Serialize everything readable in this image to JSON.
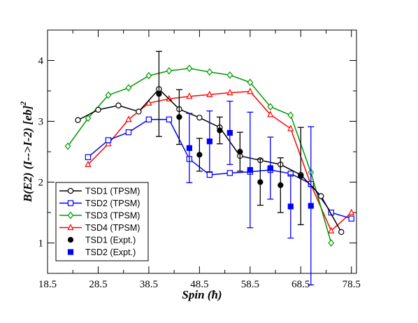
{
  "chart_data": {
    "type": "line",
    "xlabel": "Spin (ħ)",
    "ylabel_main": "B(E2) (I-->I-2) [eb]",
    "ylabel_sup": "2",
    "xlim": [
      18.5,
      79.5
    ],
    "ylim": [
      0.5,
      4.5
    ],
    "x_ticks": [
      18.5,
      28.5,
      38.5,
      48.5,
      58.5,
      68.5,
      78.5
    ],
    "x_tick_labels": [
      "18.5",
      "28.5",
      "38.5",
      "48.5",
      "58.5",
      "68.5",
      "78.5"
    ],
    "y_ticks": [
      1,
      2,
      3,
      4
    ],
    "y_tick_labels": [
      "1",
      "2",
      "3",
      "4"
    ],
    "grid": false,
    "legend_position": "bottom-left",
    "series": [
      {
        "name": "TSD1 (TPSM)",
        "color": "#000000",
        "marker": "circle-open",
        "x": [
          24.5,
          28.5,
          32.5,
          36.5,
          40.5,
          44.5,
          48.5,
          52.5,
          56.5,
          60.5,
          64.5,
          68.5,
          72.5,
          76.5
        ],
        "y": [
          3.02,
          3.19,
          3.26,
          3.16,
          3.53,
          3.2,
          3.06,
          2.9,
          2.43,
          2.36,
          2.29,
          2.12,
          1.77,
          1.18
        ]
      },
      {
        "name": "TSD2 (TPSM)",
        "color": "#0000ff",
        "marker": "square-open",
        "x": [
          26.5,
          30.5,
          34.5,
          38.5,
          42.5,
          46.5,
          50.5,
          54.5,
          58.5,
          62.5,
          66.5,
          70.5,
          74.5,
          78.5
        ],
        "y": [
          2.41,
          2.69,
          2.82,
          3.03,
          3.03,
          2.38,
          2.12,
          2.15,
          2.17,
          2.2,
          2.14,
          1.97,
          1.5,
          1.4
        ]
      },
      {
        "name": "TSD3 (TPSM)",
        "color": "#009900",
        "marker": "diamond-open",
        "x": [
          22.5,
          26.5,
          30.5,
          34.5,
          38.5,
          42.5,
          46.5,
          50.5,
          54.5,
          58.5,
          62.5,
          66.5,
          70.5,
          74.5
        ],
        "y": [
          2.59,
          3.05,
          3.43,
          3.55,
          3.75,
          3.83,
          3.87,
          3.81,
          3.76,
          3.64,
          3.24,
          3.1,
          2.16,
          1.0
        ]
      },
      {
        "name": "TSD4 (TPSM)",
        "color": "#ff0000",
        "marker": "triangle-open",
        "x": [
          26.5,
          30.5,
          34.5,
          38.5,
          42.5,
          46.5,
          50.5,
          54.5,
          58.5,
          62.5,
          66.5,
          70.5,
          74.5,
          78.5
        ],
        "y": [
          2.29,
          2.63,
          3.03,
          3.3,
          3.37,
          3.41,
          3.44,
          3.47,
          3.49,
          3.11,
          2.88,
          1.96,
          1.2,
          1.5
        ]
      },
      {
        "name": "TSD1 (Expt.)",
        "color": "#000000",
        "marker": "circle-filled",
        "x": [
          40.5,
          44.5,
          48.5,
          52.5,
          56.5,
          60.5,
          64.5,
          68.5
        ],
        "y": [
          3.45,
          3.07,
          2.45,
          2.85,
          2.5,
          2.0,
          1.95,
          2.1
        ],
        "err": [
          0.7,
          0.45,
          0.27,
          0.22,
          0.32,
          0.38,
          0.45,
          0.8
        ]
      },
      {
        "name": "TSD2 (Expt.)",
        "color": "#0000ff",
        "marker": "square-filled",
        "x": [
          46.5,
          50.5,
          54.5,
          58.5,
          62.5,
          66.5,
          70.5
        ],
        "y": [
          2.56,
          2.67,
          2.81,
          2.2,
          2.23,
          1.6,
          1.61
        ],
        "err": [
          0.57,
          0.5,
          0.52,
          0.95,
          0.51,
          0.52,
          1.3
        ]
      }
    ]
  }
}
